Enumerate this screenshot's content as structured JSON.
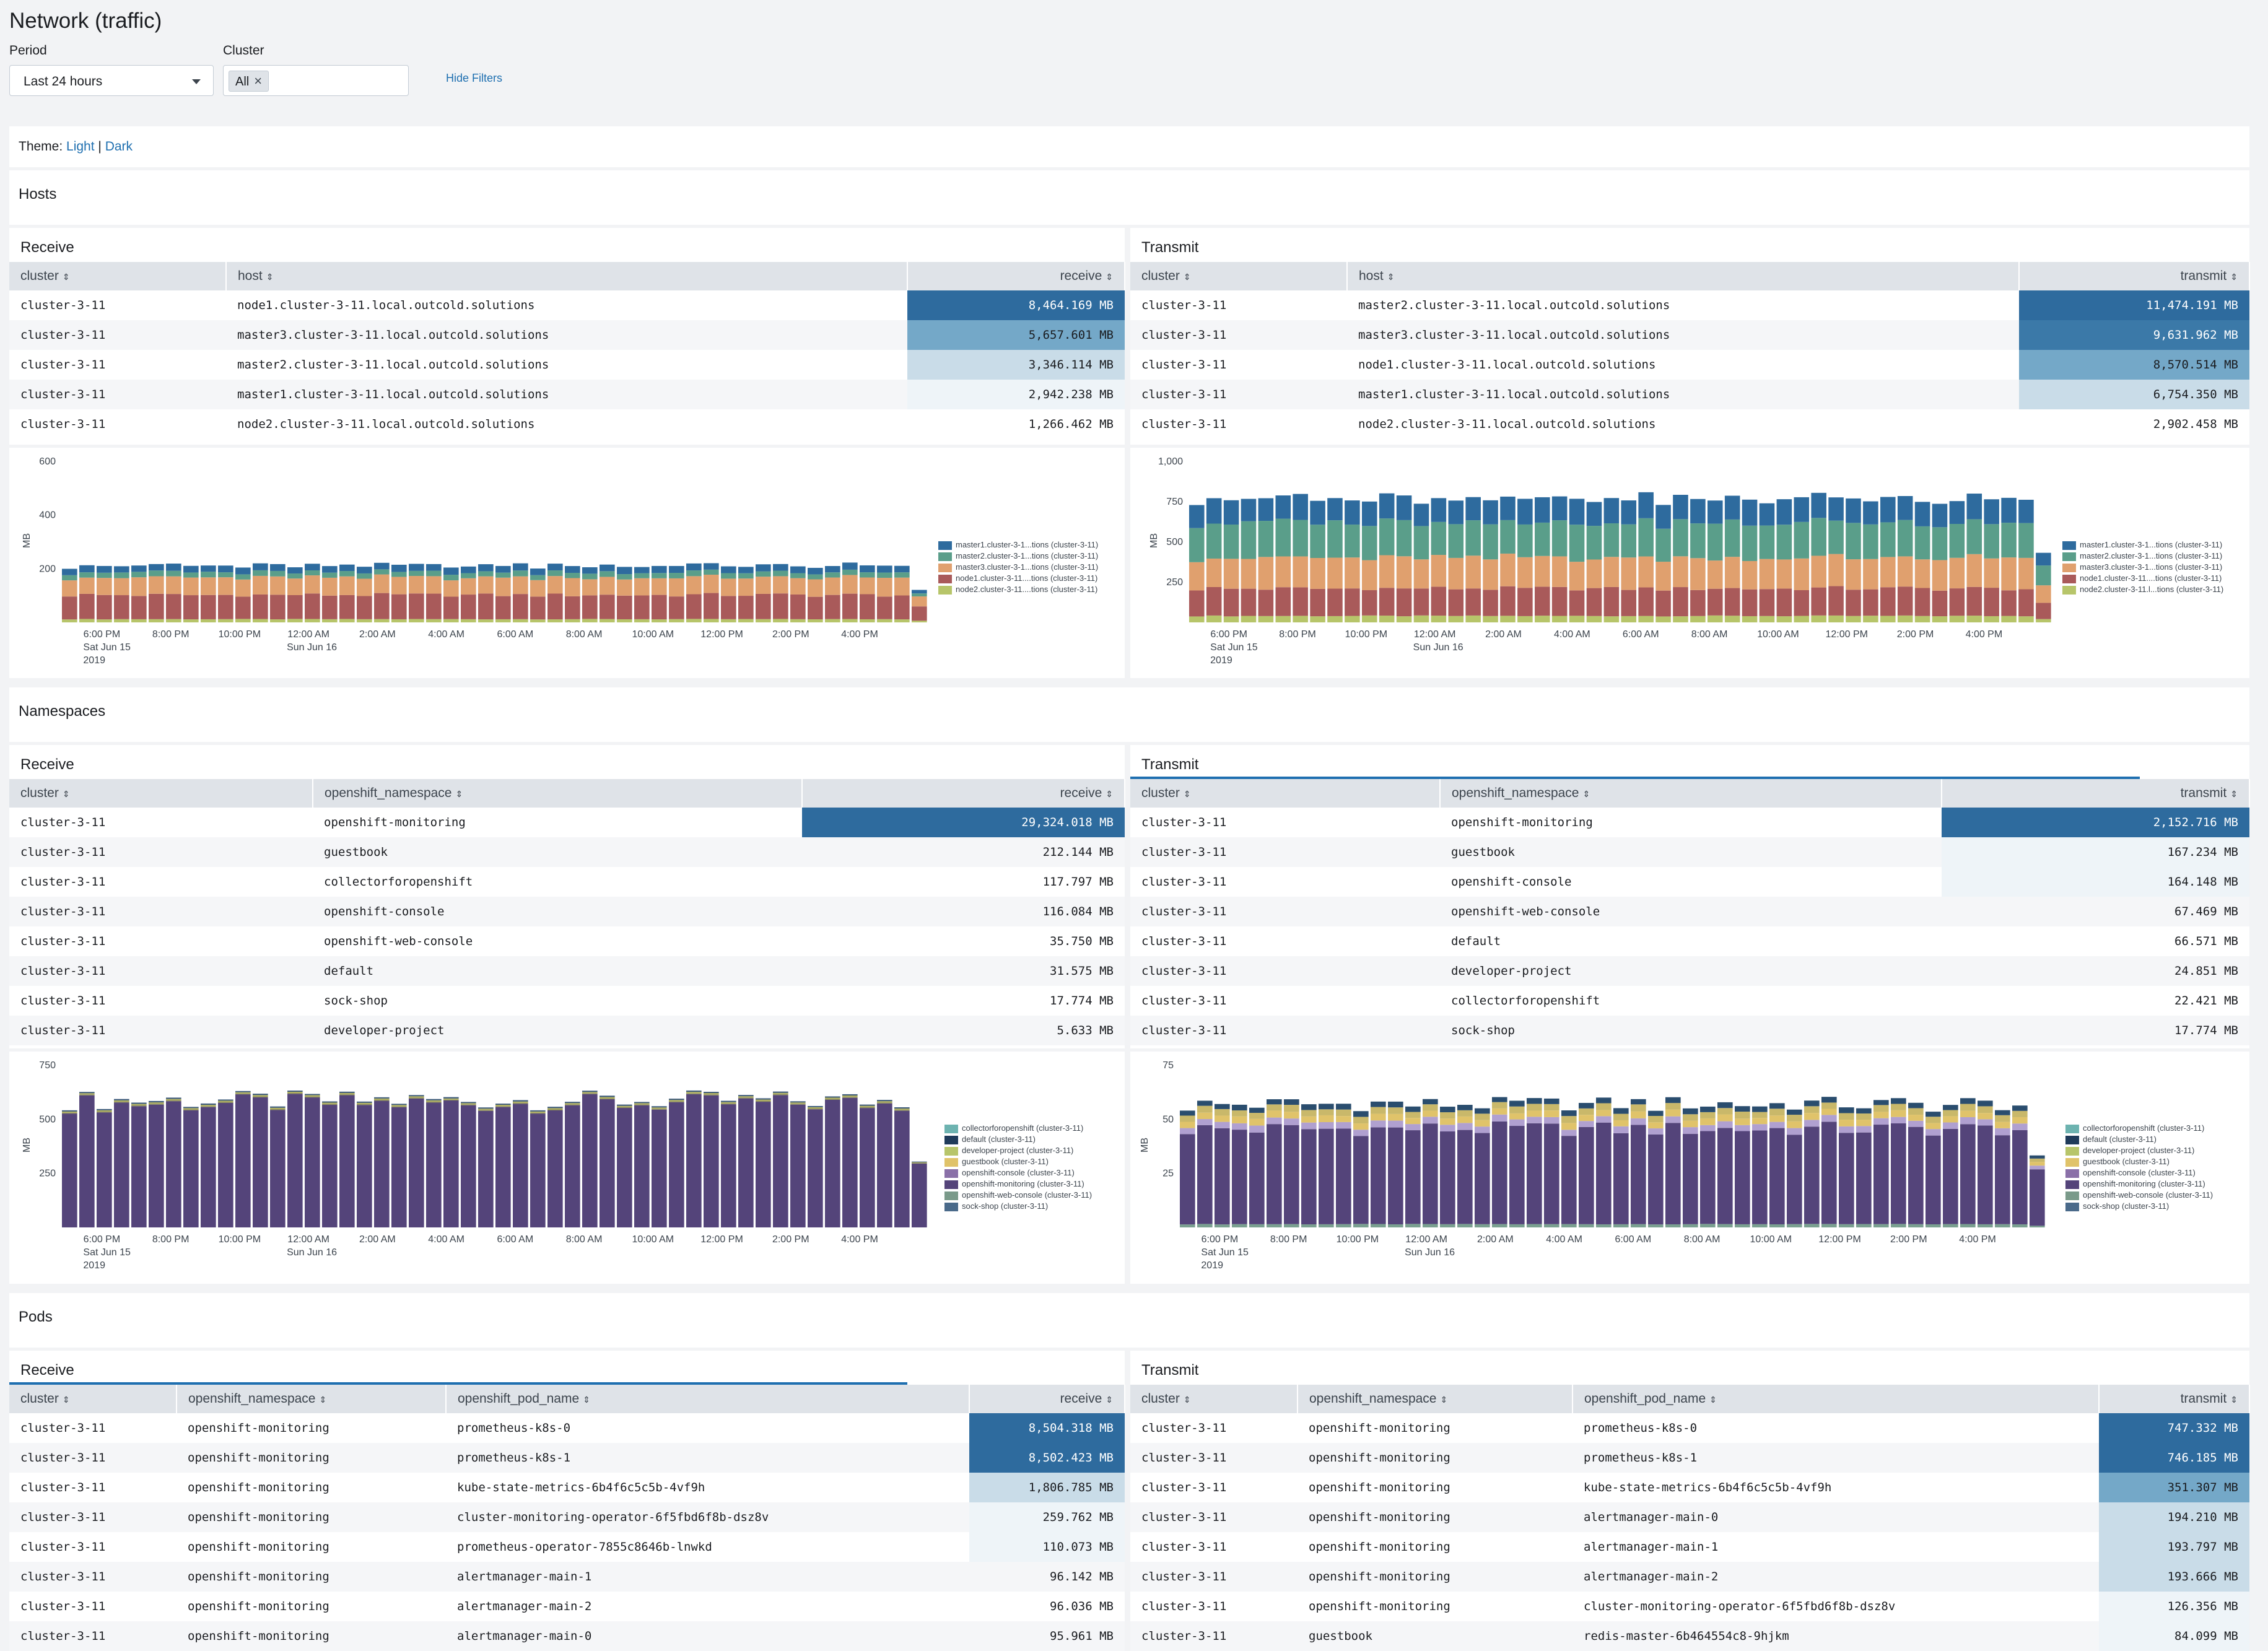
{
  "title": "Network (traffic)",
  "filters": {
    "period_label": "Period",
    "period_value": "Last 24 hours",
    "cluster_label": "Cluster",
    "cluster_chip": "All",
    "hide_filters": "Hide Filters"
  },
  "theme": {
    "prefix": "Theme: ",
    "light": "Light",
    "separator": " | ",
    "dark": "Dark"
  },
  "sections": {
    "hosts": "Hosts",
    "namespaces": "Namespaces",
    "pods": "Pods"
  },
  "colors": {
    "heat_strong": "#2e6b9e",
    "heat_mid": "#74a8c8",
    "heat_light": "#c9dce8",
    "heat_faint": "#eef4f8",
    "teal": "#5a9e8a",
    "orange": "#e0a06e",
    "brick": "#a95a5a",
    "olive": "#b7c56a",
    "purple": "#54447a",
    "navy": "#2e6b9e"
  },
  "hosts": {
    "receive": {
      "title": "Receive",
      "columns": [
        "cluster",
        "host",
        "receive"
      ],
      "rows": [
        [
          "cluster-3-11",
          "node1.cluster-3-11.local.outcold.solutions",
          "8,464.169 MB"
        ],
        [
          "cluster-3-11",
          "master3.cluster-3-11.local.outcold.solutions",
          "5,657.601 MB"
        ],
        [
          "cluster-3-11",
          "master2.cluster-3-11.local.outcold.solutions",
          "3,346.114 MB"
        ],
        [
          "cluster-3-11",
          "master1.cluster-3-11.local.outcold.solutions",
          "2,942.238 MB"
        ],
        [
          "cluster-3-11",
          "node2.cluster-3-11.local.outcold.solutions",
          "1,266.462 MB"
        ]
      ],
      "chart": {
        "yticks": [
          "600",
          "400",
          "200"
        ],
        "ylabel": "MB",
        "legend": [
          "master1.cluster-3-1...tions (cluster-3-11)",
          "master2.cluster-3-1...tions (cluster-3-11)",
          "master3.cluster-3-1...tions (cluster-3-11)",
          "node1.cluster-3-11....tions (cluster-3-11)",
          "node2.cluster-3-11....tions (cluster-3-11)"
        ]
      }
    },
    "transmit": {
      "title": "Transmit",
      "columns": [
        "cluster",
        "host",
        "transmit"
      ],
      "rows": [
        [
          "cluster-3-11",
          "master2.cluster-3-11.local.outcold.solutions",
          "11,474.191 MB"
        ],
        [
          "cluster-3-11",
          "master3.cluster-3-11.local.outcold.solutions",
          "9,631.962 MB"
        ],
        [
          "cluster-3-11",
          "node1.cluster-3-11.local.outcold.solutions",
          "8,570.514 MB"
        ],
        [
          "cluster-3-11",
          "master1.cluster-3-11.local.outcold.solutions",
          "6,754.350 MB"
        ],
        [
          "cluster-3-11",
          "node2.cluster-3-11.local.outcold.solutions",
          "2,902.458 MB"
        ]
      ],
      "chart": {
        "yticks": [
          "1,000",
          "750",
          "500",
          "250"
        ],
        "ylabel": "MB",
        "legend": [
          "master1.cluster-3-1...tions (cluster-3-11)",
          "master2.cluster-3-1...tions (cluster-3-11)",
          "master3.cluster-3-1...tions (cluster-3-11)",
          "node1.cluster-3-11....tions (cluster-3-11)",
          "node2.cluster-3-11.l...tions (cluster-3-11)"
        ]
      }
    }
  },
  "namespaces": {
    "receive": {
      "title": "Receive",
      "columns": [
        "cluster",
        "openshift_namespace",
        "receive"
      ],
      "rows": [
        [
          "cluster-3-11",
          "openshift-monitoring",
          "29,324.018 MB"
        ],
        [
          "cluster-3-11",
          "guestbook",
          "212.144 MB"
        ],
        [
          "cluster-3-11",
          "collectorforopenshift",
          "117.797 MB"
        ],
        [
          "cluster-3-11",
          "openshift-console",
          "116.084 MB"
        ],
        [
          "cluster-3-11",
          "openshift-web-console",
          "35.750 MB"
        ],
        [
          "cluster-3-11",
          "default",
          "31.575 MB"
        ],
        [
          "cluster-3-11",
          "sock-shop",
          "17.774 MB"
        ],
        [
          "cluster-3-11",
          "developer-project",
          "5.633 MB"
        ]
      ],
      "chart": {
        "yticks": [
          "750",
          "500",
          "250"
        ],
        "ylabel": "MB",
        "legend": [
          "collectorforopenshift (cluster-3-11)",
          "default (cluster-3-11)",
          "developer-project (cluster-3-11)",
          "guestbook (cluster-3-11)",
          "openshift-console (cluster-3-11)",
          "openshift-monitoring (cluster-3-11)",
          "openshift-web-console (cluster-3-11)",
          "sock-shop (cluster-3-11)"
        ]
      }
    },
    "transmit": {
      "title": "Transmit",
      "columns": [
        "cluster",
        "openshift_namespace",
        "transmit"
      ],
      "rows": [
        [
          "cluster-3-11",
          "openshift-monitoring",
          "2,152.716 MB"
        ],
        [
          "cluster-3-11",
          "guestbook",
          "167.234 MB"
        ],
        [
          "cluster-3-11",
          "openshift-console",
          "164.148 MB"
        ],
        [
          "cluster-3-11",
          "openshift-web-console",
          "67.469 MB"
        ],
        [
          "cluster-3-11",
          "default",
          "66.571 MB"
        ],
        [
          "cluster-3-11",
          "developer-project",
          "24.851 MB"
        ],
        [
          "cluster-3-11",
          "collectorforopenshift",
          "22.421 MB"
        ],
        [
          "cluster-3-11",
          "sock-shop",
          "17.774 MB"
        ]
      ],
      "chart": {
        "yticks": [
          "75",
          "50",
          "25"
        ],
        "ylabel": "MB",
        "legend": [
          "collectorforopenshift (cluster-3-11)",
          "default (cluster-3-11)",
          "developer-project (cluster-3-11)",
          "guestbook (cluster-3-11)",
          "openshift-console (cluster-3-11)",
          "openshift-monitoring (cluster-3-11)",
          "openshift-web-console (cluster-3-11)",
          "sock-shop (cluster-3-11)"
        ]
      }
    }
  },
  "pods": {
    "receive": {
      "title": "Receive",
      "columns": [
        "cluster",
        "openshift_namespace",
        "openshift_pod_name",
        "receive"
      ],
      "rows": [
        [
          "cluster-3-11",
          "openshift-monitoring",
          "prometheus-k8s-0",
          "8,504.318 MB"
        ],
        [
          "cluster-3-11",
          "openshift-monitoring",
          "prometheus-k8s-1",
          "8,502.423 MB"
        ],
        [
          "cluster-3-11",
          "openshift-monitoring",
          "kube-state-metrics-6b4f6c5c5b-4vf9h",
          "1,806.785 MB"
        ],
        [
          "cluster-3-11",
          "openshift-monitoring",
          "cluster-monitoring-operator-6f5fbd6f8b-dsz8v",
          "259.762 MB"
        ],
        [
          "cluster-3-11",
          "openshift-monitoring",
          "prometheus-operator-7855c8646b-lnwkd",
          "110.073 MB"
        ],
        [
          "cluster-3-11",
          "openshift-monitoring",
          "alertmanager-main-1",
          "96.142 MB"
        ],
        [
          "cluster-3-11",
          "openshift-monitoring",
          "alertmanager-main-2",
          "96.036 MB"
        ],
        [
          "cluster-3-11",
          "openshift-monitoring",
          "alertmanager-main-0",
          "95.961 MB"
        ]
      ]
    },
    "transmit": {
      "title": "Transmit",
      "columns": [
        "cluster",
        "openshift_namespace",
        "openshift_pod_name",
        "transmit"
      ],
      "rows": [
        [
          "cluster-3-11",
          "openshift-monitoring",
          "prometheus-k8s-0",
          "747.332 MB"
        ],
        [
          "cluster-3-11",
          "openshift-monitoring",
          "prometheus-k8s-1",
          "746.185 MB"
        ],
        [
          "cluster-3-11",
          "openshift-monitoring",
          "kube-state-metrics-6b4f6c5c5b-4vf9h",
          "351.307 MB"
        ],
        [
          "cluster-3-11",
          "openshift-monitoring",
          "alertmanager-main-0",
          "194.210 MB"
        ],
        [
          "cluster-3-11",
          "openshift-monitoring",
          "alertmanager-main-1",
          "193.797 MB"
        ],
        [
          "cluster-3-11",
          "openshift-monitoring",
          "alertmanager-main-2",
          "193.666 MB"
        ],
        [
          "cluster-3-11",
          "openshift-monitoring",
          "cluster-monitoring-operator-6f5fbd6f8b-dsz8v",
          "126.356 MB"
        ],
        [
          "cluster-3-11",
          "guestbook",
          "redis-master-6b464554c8-9hjkm",
          "84.099 MB"
        ]
      ]
    }
  },
  "xaxis": {
    "ticks": [
      "6:00 PM",
      "8:00 PM",
      "10:00 PM",
      "12:00 AM",
      "2:00 AM",
      "4:00 AM",
      "6:00 AM",
      "8:00 AM",
      "10:00 AM",
      "12:00 PM",
      "2:00 PM",
      "4:00 PM"
    ],
    "date1_line1": "Sat Jun 15",
    "date1_line2": "2019",
    "date2_line1": "Sun Jun 16"
  }
}
